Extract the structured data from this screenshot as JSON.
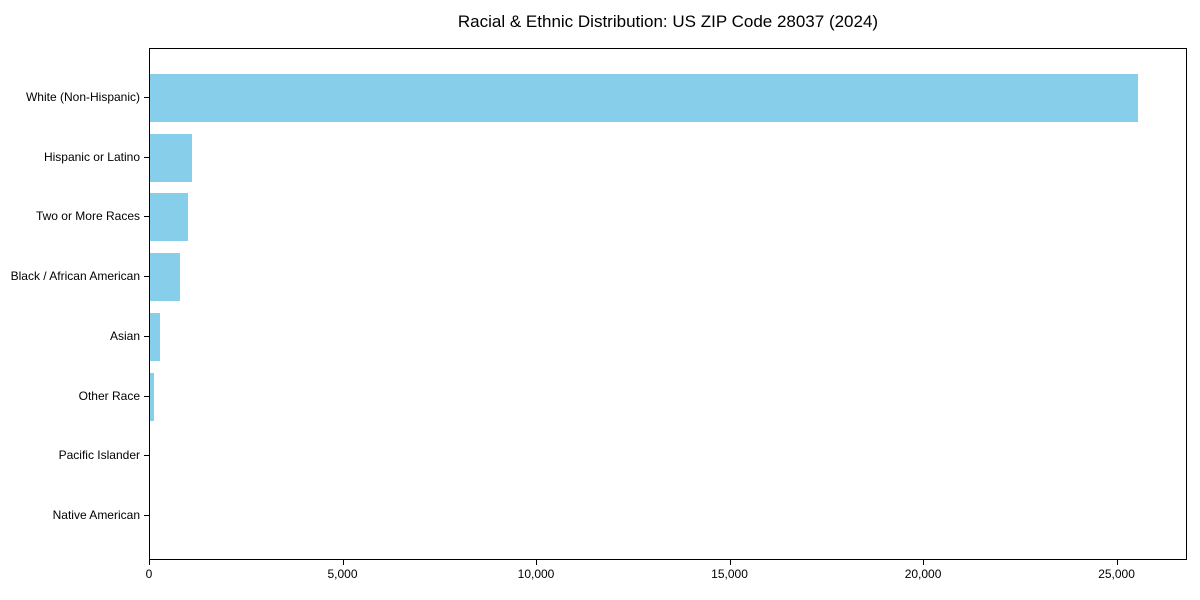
{
  "title": "Racial & Ethnic Distribution: US ZIP Code 28037 (2024)",
  "colors": {
    "bar": "#87CEEB",
    "axis": "#000000",
    "background": "#FFFFFF",
    "text": "#000000"
  },
  "chart_data": {
    "type": "bar",
    "orientation": "horizontal",
    "title": "Racial & Ethnic Distribution: US ZIP Code 28037 (2024)",
    "categories": [
      "White (Non-Hispanic)",
      "Hispanic or Latino",
      "Two or More Races",
      "Black / African American",
      "Asian",
      "Other Race",
      "Pacific Islander",
      "Native American"
    ],
    "values": [
      25540,
      1080,
      975,
      785,
      260,
      110,
      0,
      0
    ],
    "bar_color": "#87CEEB",
    "xlabel": "",
    "ylabel": "",
    "xlim": [
      0,
      26820
    ],
    "x_ticks": [
      0,
      5000,
      10000,
      15000,
      20000,
      25000
    ],
    "x_tick_labels": [
      "0",
      "5,000",
      "10,000",
      "15,000",
      "20,000",
      "25,000"
    ],
    "grid": false,
    "legend": null
  }
}
